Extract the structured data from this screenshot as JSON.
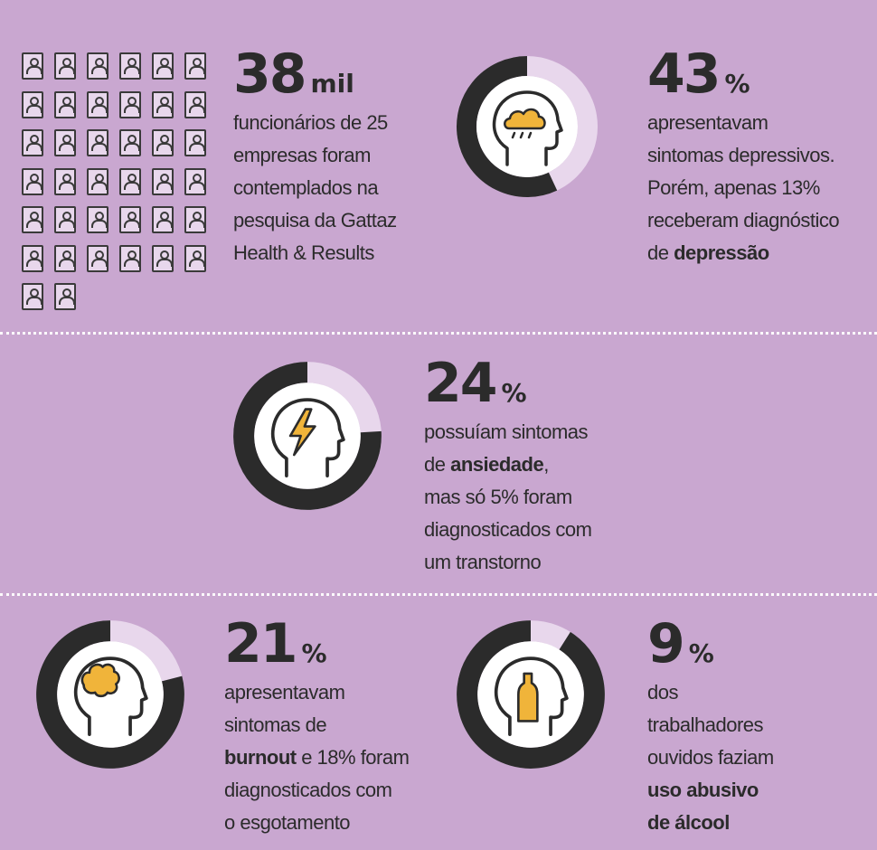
{
  "colors": {
    "background": "#c9a7d0",
    "ring_dark": "#2b2b2b",
    "ring_light": "#e8d7ec",
    "accent_yellow": "#f0b43a",
    "head_fill": "#ffffff"
  },
  "employees": {
    "icon": "employee-id-icon",
    "count": 38,
    "big": "38",
    "unit": "mil",
    "desc_lines": [
      "funcionários de 25",
      "empresas foram",
      "contemplados na",
      "pesquisa da Gattaz",
      "Health & Results"
    ]
  },
  "depression": {
    "icon": "rain-cloud-head-icon",
    "percent": 43,
    "big": "43",
    "unit": "%",
    "desc_lines": [
      "apresentavam",
      "sintomas depressivos.",
      "Porém, apenas 13%",
      "receberam diagnóstico"
    ],
    "last_prefix": "de ",
    "last_bold": "depressão"
  },
  "anxiety": {
    "icon": "lightning-head-icon",
    "percent": 24,
    "big": "24",
    "unit": "%",
    "line1": "possuíam sintomas",
    "line2_prefix": "de ",
    "line2_bold": "ansiedade",
    "line2_suffix": ",",
    "desc_lines": [
      "mas só 5% foram",
      "diagnosticados com",
      "um transtorno"
    ]
  },
  "burnout": {
    "icon": "burnt-brain-head-icon",
    "percent": 21,
    "big": "21",
    "unit": "%",
    "desc_lines_top": [
      "apresentavam",
      "sintomas de"
    ],
    "bold": "burnout",
    "after_bold": " e 18% foram",
    "desc_lines_bottom": [
      "diagnosticados com",
      "o esgotamento"
    ]
  },
  "alcohol": {
    "icon": "bottle-head-icon",
    "percent": 9,
    "big": "9",
    "unit": "%",
    "desc_lines": [
      "dos",
      "trabalhadores",
      "ouvidos faziam"
    ],
    "bold_lines": [
      "uso abusivo",
      "de álcool"
    ]
  }
}
